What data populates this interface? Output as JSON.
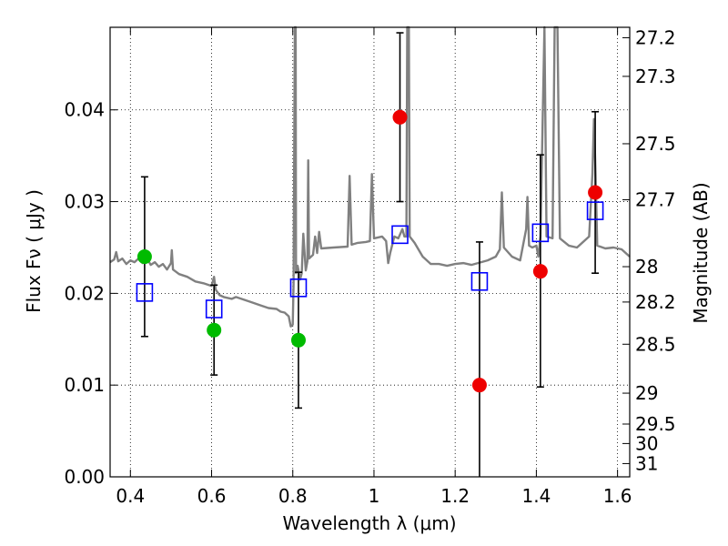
{
  "chart_data": {
    "type": "scatter",
    "xlabel": "Wavelength  λ (μm)",
    "ylabel": "Flux  Fν  ( μJy )",
    "y2label": "Magnitude (AB)",
    "xlim": [
      0.35,
      1.63
    ],
    "ylim": [
      0.0,
      0.049
    ],
    "grid": true,
    "x_ticks": [
      0.4,
      0.6,
      0.8,
      1.0,
      1.2,
      1.4,
      1.6
    ],
    "x_tick_labels": [
      "0.4",
      "0.6",
      "0.8",
      "1",
      "1.2",
      "1.4",
      "1.6"
    ],
    "y_ticks": [
      0.0,
      0.01,
      0.02,
      0.03,
      0.04
    ],
    "y_tick_labels": [
      "0.00",
      "0.01",
      "0.02",
      "0.03",
      "0.04"
    ],
    "mag_ticks": [
      27.2,
      27.3,
      27.5,
      27.7,
      28,
      28.2,
      28.5,
      29,
      29.5,
      30,
      31
    ],
    "mag_tick_labels": [
      "27.2",
      "27.3",
      "27.5",
      "27.7",
      "28",
      "28.2",
      "28.5",
      "29",
      "29.5",
      "30",
      "31"
    ],
    "colors": {
      "spectrum": "#808080",
      "model": "#0000ff",
      "optical": "#00bb00",
      "nir": "#ee0000",
      "errorbar": "#000000"
    },
    "series": [
      {
        "marker": "open-square",
        "x": [
          0.435,
          0.606,
          0.814,
          1.064,
          1.26,
          1.41,
          1.545
        ],
        "y": [
          0.0201,
          0.0183,
          0.0206,
          0.0264,
          0.0213,
          0.0266,
          0.029
        ]
      },
      {
        "marker": "filled-circle",
        "x": [
          0.435,
          0.606,
          0.814
        ],
        "y": [
          0.024,
          0.016,
          0.0149
        ],
        "yerr_low": [
          0.0087,
          0.0049,
          0.0074
        ],
        "yerr_high": [
          0.0087,
          0.0049,
          0.0074
        ]
      },
      {
        "marker": "filled-circle",
        "x": [
          1.064,
          1.26,
          1.41,
          1.545
        ],
        "y": [
          0.0392,
          0.01,
          0.0224,
          0.031
        ],
        "yerr_low": [
          0.0092,
          0.01,
          0.0126,
          0.0088
        ],
        "yerr_high": [
          0.0092,
          0.0156,
          0.0127,
          0.0088
        ]
      }
    ],
    "spectrum": [
      [
        0.35,
        0.0234
      ],
      [
        0.36,
        0.0237
      ],
      [
        0.365,
        0.0245
      ],
      [
        0.37,
        0.0235
      ],
      [
        0.38,
        0.0238
      ],
      [
        0.39,
        0.0232
      ],
      [
        0.4,
        0.0236
      ],
      [
        0.41,
        0.0234
      ],
      [
        0.42,
        0.0238
      ],
      [
        0.43,
        0.0233
      ],
      [
        0.44,
        0.0239
      ],
      [
        0.45,
        0.0231
      ],
      [
        0.46,
        0.0234
      ],
      [
        0.47,
        0.0229
      ],
      [
        0.48,
        0.0232
      ],
      [
        0.49,
        0.0226
      ],
      [
        0.5,
        0.0233
      ],
      [
        0.502,
        0.0247
      ],
      [
        0.505,
        0.0226
      ],
      [
        0.52,
        0.0221
      ],
      [
        0.54,
        0.0218
      ],
      [
        0.56,
        0.0213
      ],
      [
        0.58,
        0.0211
      ],
      [
        0.6,
        0.0208
      ],
      [
        0.606,
        0.0218
      ],
      [
        0.61,
        0.0204
      ],
      [
        0.62,
        0.0198
      ],
      [
        0.63,
        0.0196
      ],
      [
        0.65,
        0.0194
      ],
      [
        0.66,
        0.0196
      ],
      [
        0.68,
        0.0193
      ],
      [
        0.7,
        0.019
      ],
      [
        0.72,
        0.0187
      ],
      [
        0.74,
        0.0184
      ],
      [
        0.76,
        0.0183
      ],
      [
        0.77,
        0.018
      ],
      [
        0.78,
        0.0179
      ],
      [
        0.79,
        0.0175
      ],
      [
        0.795,
        0.0164
      ],
      [
        0.8,
        0.0166
      ],
      [
        0.802,
        0.021
      ],
      [
        0.805,
        0.049
      ],
      [
        0.807,
        0.049
      ],
      [
        0.808,
        0.0222
      ],
      [
        0.812,
        0.023
      ],
      [
        0.818,
        0.0215
      ],
      [
        0.822,
        0.0222
      ],
      [
        0.826,
        0.0265
      ],
      [
        0.83,
        0.0238
      ],
      [
        0.832,
        0.0225
      ],
      [
        0.836,
        0.0235
      ],
      [
        0.838,
        0.0345
      ],
      [
        0.84,
        0.0238
      ],
      [
        0.85,
        0.0242
      ],
      [
        0.855,
        0.0262
      ],
      [
        0.86,
        0.0244
      ],
      [
        0.865,
        0.0267
      ],
      [
        0.87,
        0.0249
      ],
      [
        0.9,
        0.025
      ],
      [
        0.935,
        0.0251
      ],
      [
        0.94,
        0.0328
      ],
      [
        0.945,
        0.0253
      ],
      [
        0.96,
        0.0255
      ],
      [
        0.98,
        0.0256
      ],
      [
        0.99,
        0.0257
      ],
      [
        0.995,
        0.033
      ],
      [
        1.0,
        0.026
      ],
      [
        1.02,
        0.0262
      ],
      [
        1.03,
        0.0257
      ],
      [
        1.035,
        0.0233
      ],
      [
        1.04,
        0.0244
      ],
      [
        1.05,
        0.0262
      ],
      [
        1.06,
        0.026
      ],
      [
        1.07,
        0.027
      ],
      [
        1.075,
        0.0262
      ],
      [
        1.08,
        0.0262
      ],
      [
        1.082,
        0.049
      ],
      [
        1.086,
        0.049
      ],
      [
        1.088,
        0.0262
      ],
      [
        1.1,
        0.0255
      ],
      [
        1.12,
        0.024
      ],
      [
        1.14,
        0.0232
      ],
      [
        1.16,
        0.0232
      ],
      [
        1.18,
        0.023
      ],
      [
        1.2,
        0.0232
      ],
      [
        1.22,
        0.0233
      ],
      [
        1.24,
        0.0231
      ],
      [
        1.28,
        0.0236
      ],
      [
        1.3,
        0.024
      ],
      [
        1.31,
        0.0248
      ],
      [
        1.315,
        0.031
      ],
      [
        1.32,
        0.025
      ],
      [
        1.34,
        0.024
      ],
      [
        1.36,
        0.0236
      ],
      [
        1.375,
        0.027
      ],
      [
        1.378,
        0.0305
      ],
      [
        1.382,
        0.0252
      ],
      [
        1.39,
        0.025
      ],
      [
        1.4,
        0.0252
      ],
      [
        1.405,
        0.024
      ],
      [
        1.41,
        0.0262
      ],
      [
        1.42,
        0.049
      ],
      [
        1.425,
        0.0262
      ],
      [
        1.44,
        0.026
      ],
      [
        1.445,
        0.049
      ],
      [
        1.452,
        0.049
      ],
      [
        1.458,
        0.026
      ],
      [
        1.48,
        0.0252
      ],
      [
        1.5,
        0.025
      ],
      [
        1.53,
        0.0262
      ],
      [
        1.538,
        0.033
      ],
      [
        1.542,
        0.039
      ],
      [
        1.546,
        0.033
      ],
      [
        1.55,
        0.0252
      ],
      [
        1.57,
        0.0249
      ],
      [
        1.59,
        0.025
      ],
      [
        1.61,
        0.0248
      ],
      [
        1.63,
        0.024
      ]
    ]
  }
}
